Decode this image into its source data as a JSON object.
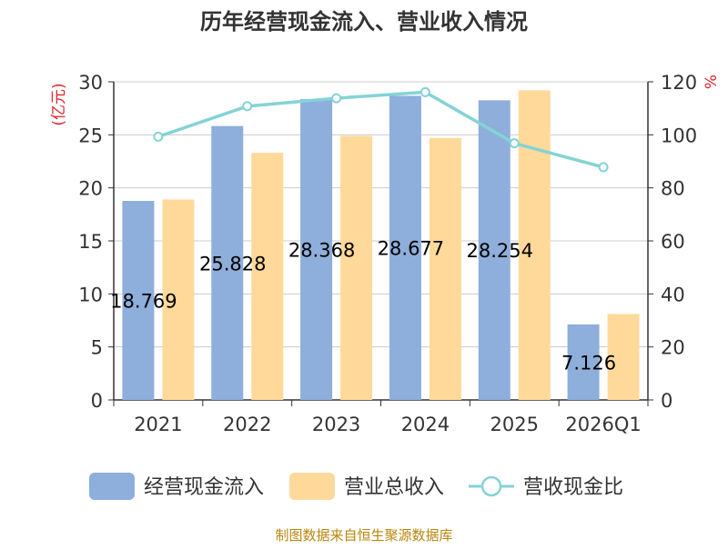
{
  "chart_data": {
    "type": "bar",
    "title": "历年经营现金流入、营业收入情况",
    "categories": [
      "2021",
      "2022",
      "2023",
      "2024",
      "2025",
      "2026Q1"
    ],
    "series": [
      {
        "name": "经营现金流入",
        "kind": "bar",
        "axis": "left",
        "color": "#8eaedb",
        "values": [
          18.769,
          25.828,
          28.368,
          28.677,
          28.254,
          7.126
        ],
        "labels": [
          "18.769",
          "25.828",
          "28.368",
          "28.677",
          "28.254",
          "7.126"
        ]
      },
      {
        "name": "营业总收入",
        "kind": "bar",
        "axis": "left",
        "color": "#ffd99a",
        "values": [
          18.9,
          23.3,
          24.9,
          24.7,
          29.2,
          8.1
        ]
      },
      {
        "name": "营收现金比",
        "kind": "line",
        "axis": "right",
        "color": "#84d3d6",
        "values": [
          99.3,
          110.8,
          113.8,
          116.1,
          96.8,
          87.8
        ]
      }
    ],
    "ylabel": "(亿元)",
    "y2label": "%",
    "ylim": [
      0,
      30
    ],
    "y2lim": [
      0,
      120
    ],
    "yticks": [
      0,
      5,
      10,
      15,
      20,
      25,
      30
    ],
    "y2ticks": [
      0,
      20,
      40,
      60,
      80,
      100,
      120
    ],
    "grid": true,
    "legend_position": "bottom"
  },
  "footer": "制图数据来自恒生聚源数据库"
}
